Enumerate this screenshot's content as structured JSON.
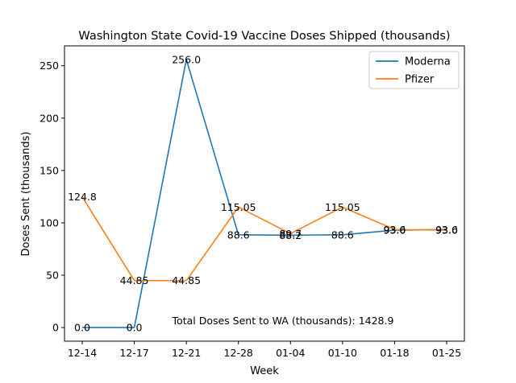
{
  "chart_data": {
    "type": "line",
    "title": "Washington State Covid-19 Vaccine Doses Shipped (thousands)",
    "xlabel": "Week",
    "ylabel": "Doses Sent (thousands)",
    "categories": [
      "12-14",
      "12-17",
      "12-21",
      "12-28",
      "01-04",
      "01-10",
      "01-18",
      "01-25"
    ],
    "ylim": [
      -13,
      269
    ],
    "yticks": [
      0,
      50,
      100,
      150,
      200,
      250
    ],
    "grid": false,
    "legend_position": "top-right",
    "series": [
      {
        "name": "Moderna",
        "color": "#1f77b4",
        "values": [
          0.0,
          0.0,
          256.0,
          88.6,
          88.2,
          88.6,
          93.0,
          93.6
        ],
        "labels": [
          "0.0",
          "0.0",
          "256.0",
          "88.6",
          "88.2",
          "88.6",
          "93.0",
          "93.6"
        ]
      },
      {
        "name": "Pfizer",
        "color": "#ff7f0e",
        "values": [
          124.8,
          44.85,
          44.85,
          115.05,
          89.7,
          115.05,
          93.6,
          93.0
        ],
        "labels": [
          "124.8",
          "44.85",
          "44.85",
          "115.05",
          "89.7",
          "115.05",
          "93.6",
          "93.0"
        ]
      }
    ],
    "annotation": "Total Doses Sent to WA (thousands): 1428.9"
  }
}
